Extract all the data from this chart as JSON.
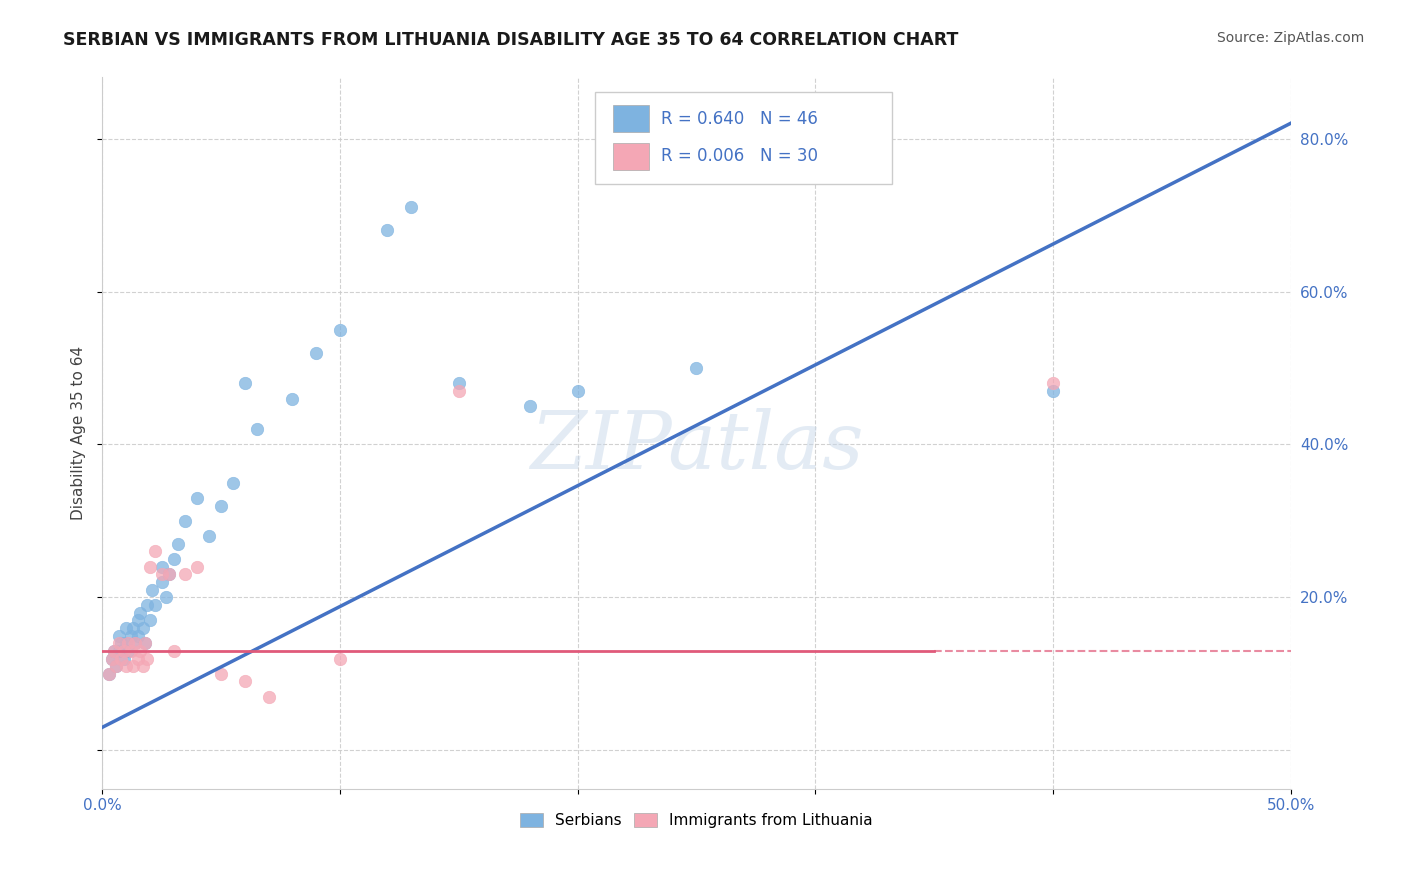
{
  "title": "SERBIAN VS IMMIGRANTS FROM LITHUANIA DISABILITY AGE 35 TO 64 CORRELATION CHART",
  "source": "Source: ZipAtlas.com",
  "ylabel": "Disability Age 35 to 64",
  "xlim": [
    0.0,
    0.5
  ],
  "ylim": [
    -0.05,
    0.88
  ],
  "xticks": [
    0.0,
    0.1,
    0.2,
    0.3,
    0.4,
    0.5
  ],
  "xticklabels": [
    "0.0%",
    "",
    "",
    "",
    "",
    "50.0%"
  ],
  "yticks": [
    0.0,
    0.2,
    0.4,
    0.6,
    0.8
  ],
  "yticklabels": [
    "",
    "20.0%",
    "40.0%",
    "60.0%",
    "80.0%"
  ],
  "serbian_color": "#7eb3e0",
  "immigrant_color": "#f4a7b5",
  "serbian_line_color": "#4472c4",
  "immigrant_line_color": "#e05a7a",
  "serbian_R": 0.64,
  "serbian_N": 46,
  "immigrant_R": 0.006,
  "immigrant_N": 30,
  "watermark": "ZIPatlas",
  "background_color": "#ffffff",
  "grid_color": "#cccccc",
  "legend_bottom_serbians": "Serbians",
  "legend_bottom_immigrants": "Immigrants from Lithuania",
  "serbian_scatter_x": [
    0.003,
    0.004,
    0.005,
    0.006,
    0.007,
    0.007,
    0.008,
    0.009,
    0.01,
    0.01,
    0.011,
    0.012,
    0.013,
    0.014,
    0.015,
    0.015,
    0.016,
    0.017,
    0.018,
    0.019,
    0.02,
    0.021,
    0.022,
    0.025,
    0.025,
    0.027,
    0.028,
    0.03,
    0.032,
    0.035,
    0.04,
    0.045,
    0.05,
    0.055,
    0.06,
    0.065,
    0.08,
    0.09,
    0.1,
    0.12,
    0.13,
    0.15,
    0.18,
    0.2,
    0.25,
    0.4
  ],
  "serbian_scatter_y": [
    0.1,
    0.12,
    0.13,
    0.11,
    0.15,
    0.13,
    0.14,
    0.12,
    0.16,
    0.14,
    0.13,
    0.15,
    0.16,
    0.14,
    0.17,
    0.15,
    0.18,
    0.16,
    0.14,
    0.19,
    0.17,
    0.21,
    0.19,
    0.22,
    0.24,
    0.2,
    0.23,
    0.25,
    0.27,
    0.3,
    0.33,
    0.28,
    0.32,
    0.35,
    0.48,
    0.42,
    0.46,
    0.52,
    0.55,
    0.68,
    0.71,
    0.48,
    0.45,
    0.47,
    0.5,
    0.47
  ],
  "immigrant_scatter_x": [
    0.003,
    0.004,
    0.005,
    0.006,
    0.007,
    0.008,
    0.009,
    0.01,
    0.011,
    0.012,
    0.013,
    0.014,
    0.015,
    0.016,
    0.017,
    0.018,
    0.019,
    0.02,
    0.022,
    0.025,
    0.028,
    0.03,
    0.035,
    0.04,
    0.05,
    0.06,
    0.07,
    0.1,
    0.15,
    0.4
  ],
  "immigrant_scatter_y": [
    0.1,
    0.12,
    0.13,
    0.11,
    0.14,
    0.12,
    0.13,
    0.11,
    0.14,
    0.13,
    0.11,
    0.14,
    0.12,
    0.13,
    0.11,
    0.14,
    0.12,
    0.24,
    0.26,
    0.23,
    0.23,
    0.13,
    0.23,
    0.24,
    0.1,
    0.09,
    0.07,
    0.12,
    0.47,
    0.48
  ],
  "serbian_line_x": [
    0.0,
    0.5
  ],
  "serbian_line_y": [
    0.03,
    0.82
  ],
  "immigrant_line_x": [
    0.0,
    0.45
  ],
  "immigrant_line_y": [
    0.13,
    0.135
  ]
}
